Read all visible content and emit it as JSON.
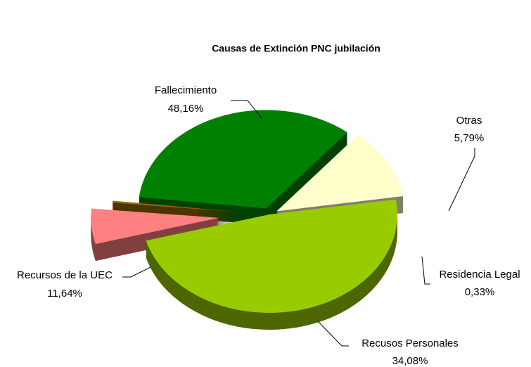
{
  "chart_data": {
    "type": "pie",
    "title": "Causas de Extinción PNC jubilación",
    "categories": [
      "Fallecimiento",
      "Otras",
      "Residencia Legal",
      "Recusos Personales",
      "Recursos de la UEC"
    ],
    "values": [
      48.16,
      5.79,
      0.33,
      34.08,
      11.64
    ],
    "value_labels": [
      "48,16%",
      "5,79%",
      "0,33%",
      "34,08%",
      "11,64%"
    ],
    "colors": [
      "#99cc00",
      "#ff8080",
      "#996600",
      "#008000",
      "#ffffcc"
    ]
  }
}
